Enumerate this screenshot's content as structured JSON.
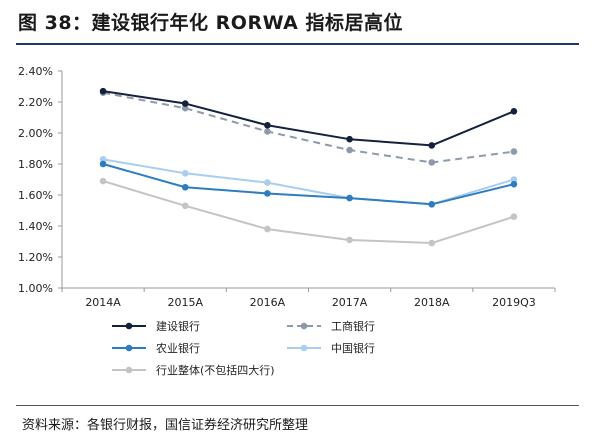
{
  "title": "图 38：建设银行年化 RORWA 指标居高位",
  "source": "资料来源：各银行财报，国信证券经济研究所整理",
  "chart_data": {
    "type": "line",
    "x": [
      "2014A",
      "2015A",
      "2016A",
      "2017A",
      "2018A",
      "2019Q3"
    ],
    "ylim": [
      1.0,
      2.4
    ],
    "yticks": [
      "1.00%",
      "1.20%",
      "1.40%",
      "1.60%",
      "1.80%",
      "2.00%",
      "2.20%",
      "2.40%"
    ],
    "grid": false,
    "legend_position": "bottom",
    "series": [
      {
        "name": "建设银行",
        "values": [
          2.27,
          2.19,
          2.05,
          1.96,
          1.92,
          2.14
        ],
        "color": "#14213d",
        "dash": "solid"
      },
      {
        "name": "工商银行",
        "values": [
          2.26,
          2.16,
          2.01,
          1.89,
          1.81,
          1.88
        ],
        "color": "#8e9aaa",
        "dash": "dashed"
      },
      {
        "name": "农业银行",
        "values": [
          1.8,
          1.65,
          1.61,
          1.58,
          1.54,
          1.67
        ],
        "color": "#2e7dc1",
        "dash": "solid"
      },
      {
        "name": "中国银行",
        "values": [
          1.83,
          1.74,
          1.68,
          1.58,
          1.54,
          1.7
        ],
        "color": "#a9cdee",
        "dash": "solid"
      },
      {
        "name": "行业整体(不包括四大行)",
        "values": [
          1.69,
          1.53,
          1.38,
          1.31,
          1.29,
          1.46
        ],
        "color": "#c4c4c4",
        "dash": "solid"
      }
    ]
  }
}
